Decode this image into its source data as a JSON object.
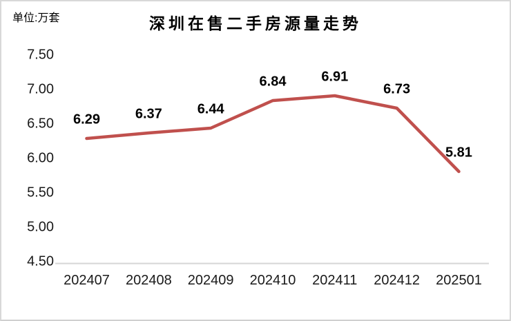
{
  "chart_data": {
    "type": "line",
    "title": "深圳在售二手房源量走势",
    "unit_label": "单位:万套",
    "categories": [
      "202407",
      "202408",
      "202409",
      "202410",
      "202411",
      "202412",
      "202501"
    ],
    "values": [
      6.29,
      6.37,
      6.44,
      6.84,
      6.91,
      6.73,
      5.81
    ],
    "data_labels": [
      "6.29",
      "6.37",
      "6.44",
      "6.84",
      "6.91",
      "6.73",
      "5.81"
    ],
    "y_ticks": [
      "7.50",
      "7.00",
      "6.50",
      "6.00",
      "5.50",
      "5.00",
      "4.50"
    ],
    "ylim": [
      4.5,
      7.5
    ],
    "xlabel": "",
    "ylabel": "",
    "grid": "none",
    "legend": "none",
    "line_color": "#C0504D",
    "axis_line_color": "#D6D6D6",
    "tick_color": "#1A1A1A",
    "data_label_color": "#000000"
  }
}
